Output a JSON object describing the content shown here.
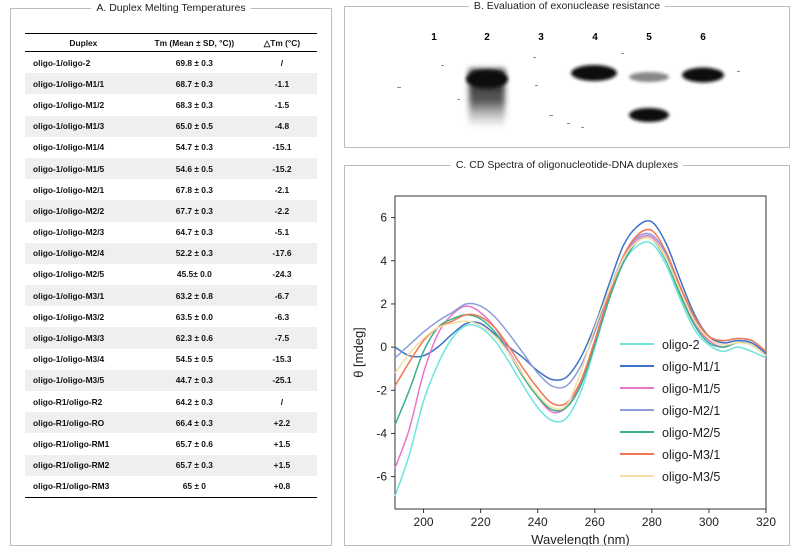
{
  "panel_a": {
    "title": "A. Duplex Melting Temperatures",
    "headers": [
      "Duplex",
      "Tm (Mean ± SD, °C))",
      "△Tm (°C)"
    ],
    "rows": [
      [
        "oligo-1/oligo-2",
        "69.8 ± 0.3",
        "/"
      ],
      [
        "oligo-1/oligo-M1/1",
        "68.7 ± 0.3",
        "-1.1"
      ],
      [
        "oligo-1/oligo-M1/2",
        "68.3 ± 0.3",
        "-1.5"
      ],
      [
        "oligo-1/oligo-M1/3",
        "65.0 ± 0.5",
        "-4.8"
      ],
      [
        "oligo-1/oligo-M1/4",
        "54.7 ± 0.3",
        "-15.1"
      ],
      [
        "oligo-1/oligo-M1/5",
        "54.6 ± 0.5",
        "-15.2"
      ],
      [
        "oligo-1/oligo-M2/1",
        "67.8 ± 0.3",
        "-2.1"
      ],
      [
        "oligo-1/oligo-M2/2",
        "67.7 ± 0.3",
        "-2.2"
      ],
      [
        "oligo-1/oligo-M2/3",
        "64.7 ± 0.3",
        "-5.1"
      ],
      [
        "oligo-1/oligo-M2/4",
        "52.2 ± 0.3",
        "-17.6"
      ],
      [
        "oligo-1/oligo-M2/5",
        "45.5± 0.0",
        "-24.3"
      ],
      [
        "oligo-1/oligo-M3/1",
        "63.2 ± 0.8",
        "-6.7"
      ],
      [
        "oligo-1/oligo-M3/2",
        "63.5 ± 0.0",
        "-6.3"
      ],
      [
        "oligo-1/oligo-M3/3",
        "62.3 ± 0.6",
        "-7.5"
      ],
      [
        "oligo-1/oligo-M3/4",
        "54.5 ± 0.5",
        "-15.3"
      ],
      [
        "oligo-1/oligo-M3/5",
        "44.7 ± 0.3",
        "-25.1"
      ],
      [
        "oligo-R1/oligo-R2",
        "64.2 ± 0.3",
        "/"
      ],
      [
        "oligo-R1/oligo-RO",
        "66.4 ± 0.3",
        "+2.2"
      ],
      [
        "oligo-R1/oligo-RM1",
        "65.7 ± 0.6",
        "+1.5"
      ],
      [
        "oligo-R1/oligo-RM2",
        "65.7 ± 0.3",
        "+1.5"
      ],
      [
        "oligo-R1/oligo-RM3",
        "65 ± 0",
        "+0.8"
      ]
    ]
  },
  "panel_b": {
    "title": "B. Evaluation of exonuclease resistance",
    "lanes": [
      {
        "label": "1",
        "bands": []
      },
      {
        "label": "2",
        "bands": [
          "smear"
        ]
      },
      {
        "label": "3",
        "bands": []
      },
      {
        "label": "4",
        "bands": [
          "full-length"
        ]
      },
      {
        "label": "5",
        "bands": [
          "faint-upper",
          "lower"
        ]
      },
      {
        "label": "6",
        "bands": [
          "full-length"
        ]
      }
    ]
  },
  "chart_data": {
    "type": "line",
    "title": "C. CD Spectra of oligonucleotide-DNA duplexes",
    "xlabel": "Wavelength (nm)",
    "ylabel": "θ [mdeg]",
    "xlim": [
      190,
      320
    ],
    "ylim": [
      -7.5,
      7
    ],
    "xticks": [
      200,
      220,
      240,
      260,
      280,
      300,
      320
    ],
    "yticks": [
      -6,
      -4,
      -2,
      0,
      2,
      4,
      6
    ],
    "grid": false,
    "legend": "center-right",
    "x": [
      190,
      195,
      200,
      205,
      210,
      215,
      220,
      225,
      230,
      235,
      240,
      245,
      250,
      255,
      260,
      265,
      270,
      275,
      280,
      285,
      290,
      295,
      300,
      305,
      310,
      315,
      320
    ],
    "series": [
      {
        "name": "oligo-2",
        "color": "#6ee3dd",
        "values": [
          -6.9,
          -5.0,
          -2.5,
          -0.8,
          0.4,
          1.0,
          0.9,
          0.3,
          -0.7,
          -1.8,
          -2.8,
          -3.4,
          -3.3,
          -2.1,
          0.0,
          2.2,
          3.9,
          4.7,
          4.8,
          3.8,
          2.2,
          0.8,
          0.1,
          -0.2,
          0.0,
          -0.2,
          -0.5
        ]
      },
      {
        "name": "oligo-M1/1",
        "color": "#3e72c6",
        "values": [
          0.0,
          -0.4,
          -0.4,
          0.0,
          0.6,
          1.1,
          1.1,
          0.6,
          0.0,
          -0.5,
          -1.1,
          -1.5,
          -1.4,
          -0.5,
          1.0,
          2.9,
          4.7,
          5.6,
          5.8,
          4.8,
          3.1,
          1.5,
          0.5,
          0.2,
          0.3,
          0.2,
          -0.3
        ]
      },
      {
        "name": "oligo-M1/5",
        "color": "#e777cd",
        "values": [
          -5.6,
          -3.8,
          -1.2,
          0.6,
          1.5,
          1.9,
          1.6,
          0.9,
          -0.2,
          -1.3,
          -2.3,
          -3.0,
          -2.8,
          -1.7,
          0.3,
          2.4,
          4.1,
          5.0,
          5.1,
          4.1,
          2.5,
          1.1,
          0.3,
          0.0,
          0.2,
          0.1,
          -0.4
        ]
      },
      {
        "name": "oligo-M2/1",
        "color": "#8c9ed9",
        "values": [
          -0.5,
          0.1,
          0.7,
          1.2,
          1.6,
          2.0,
          1.9,
          1.4,
          0.6,
          -0.3,
          -1.2,
          -1.8,
          -1.8,
          -0.9,
          0.7,
          2.6,
          4.2,
          5.1,
          5.2,
          4.3,
          2.7,
          1.3,
          0.5,
          0.3,
          0.4,
          0.3,
          -0.2
        ]
      },
      {
        "name": "oligo-M2/5",
        "color": "#3aaf8d",
        "values": [
          -3.6,
          -2.0,
          -0.2,
          0.9,
          1.3,
          1.5,
          1.3,
          0.7,
          -0.3,
          -1.4,
          -2.3,
          -2.9,
          -2.8,
          -1.8,
          0.1,
          2.2,
          3.9,
          4.9,
          5.0,
          4.0,
          2.4,
          1.0,
          0.2,
          0.0,
          0.2,
          0.1,
          -0.4
        ]
      },
      {
        "name": "oligo-M3/1",
        "color": "#f0774f",
        "values": [
          -1.8,
          -0.7,
          0.3,
          0.9,
          1.2,
          1.5,
          1.4,
          0.9,
          0.0,
          -1.0,
          -1.9,
          -2.6,
          -2.6,
          -1.6,
          0.3,
          2.4,
          4.2,
          5.2,
          5.4,
          4.4,
          2.8,
          1.4,
          0.5,
          0.3,
          0.4,
          0.3,
          -0.2
        ]
      },
      {
        "name": "oligo-M3/5",
        "color": "#f6dfa6",
        "values": [
          -1.2,
          -0.3,
          0.4,
          0.9,
          1.1,
          1.2,
          1.0,
          0.5,
          -0.3,
          -1.3,
          -2.2,
          -2.8,
          -2.7,
          -1.2,
          0.9,
          2.6,
          4.1,
          4.9,
          5.0,
          4.1,
          2.6,
          1.2,
          0.4,
          0.1,
          0.2,
          0.1,
          -0.4
        ]
      }
    ]
  }
}
